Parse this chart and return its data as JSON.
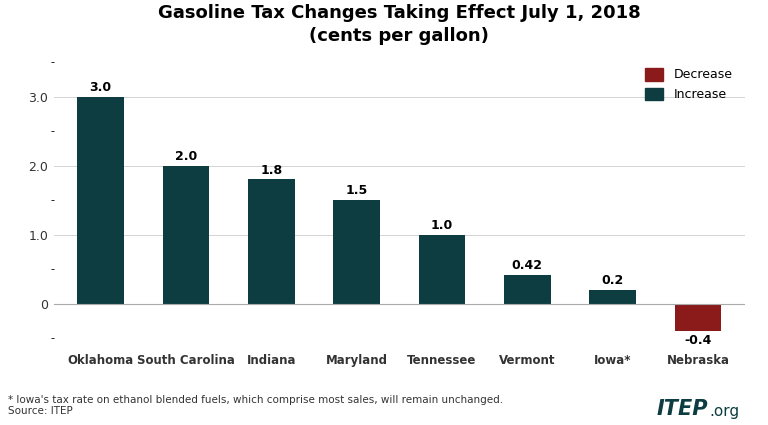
{
  "title": "Gasoline Tax Changes Taking Effect July 1, 2018\n(cents per gallon)",
  "categories": [
    "Oklahoma",
    "South Carolina",
    "Indiana",
    "Maryland",
    "Tennessee",
    "Vermont",
    "Iowa*",
    "Nebraska"
  ],
  "values": [
    3.0,
    2.0,
    1.8,
    1.5,
    1.0,
    0.42,
    0.2,
    -0.4
  ],
  "labels": [
    "3.0",
    "2.0",
    "1.8",
    "1.5",
    "1.0",
    "0.42",
    "0.2",
    "-0.4"
  ],
  "increase_color": "#0d3d40",
  "decrease_color": "#8b1a1a",
  "bg_color": "#ffffff",
  "ylim": [
    -0.65,
    3.6
  ],
  "yticks": [
    0.0,
    1.0,
    2.0,
    3.0
  ],
  "footnote": "* Iowa's tax rate on ethanol blended fuels, which comprise most sales, will remain unchanged.\nSource: ITEP",
  "legend_decrease": "Decrease",
  "legend_increase": "Increase",
  "itep_color": "#0d3d40"
}
